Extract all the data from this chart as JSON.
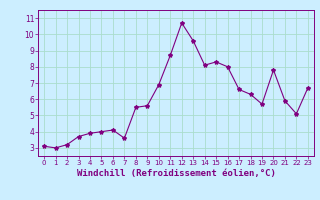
{
  "x": [
    0,
    1,
    2,
    3,
    4,
    5,
    6,
    7,
    8,
    9,
    10,
    11,
    12,
    13,
    14,
    15,
    16,
    17,
    18,
    19,
    20,
    21,
    22,
    23
  ],
  "y": [
    3.1,
    3.0,
    3.2,
    3.7,
    3.9,
    4.0,
    4.1,
    3.6,
    5.5,
    5.6,
    6.9,
    8.7,
    10.7,
    9.6,
    8.1,
    8.3,
    8.0,
    6.6,
    6.3,
    5.7,
    7.8,
    5.9,
    5.1,
    6.7
  ],
  "line_color": "#800080",
  "marker": "*",
  "marker_size": 3,
  "line_width": 0.8,
  "xlabel": "Windchill (Refroidissement éolien,°C)",
  "xlabel_fontsize": 6.5,
  "ylim": [
    2.5,
    11.5
  ],
  "xlim": [
    -0.5,
    23.5
  ],
  "yticks": [
    3,
    4,
    5,
    6,
    7,
    8,
    9,
    10,
    11
  ],
  "xticks": [
    0,
    1,
    2,
    3,
    4,
    5,
    6,
    7,
    8,
    9,
    10,
    11,
    12,
    13,
    14,
    15,
    16,
    17,
    18,
    19,
    20,
    21,
    22,
    23
  ],
  "background_color": "#cceeff",
  "grid_color": "#aaddcc",
  "tick_color": "#800080",
  "tick_label_color": "#800080",
  "spine_color": "#800080"
}
